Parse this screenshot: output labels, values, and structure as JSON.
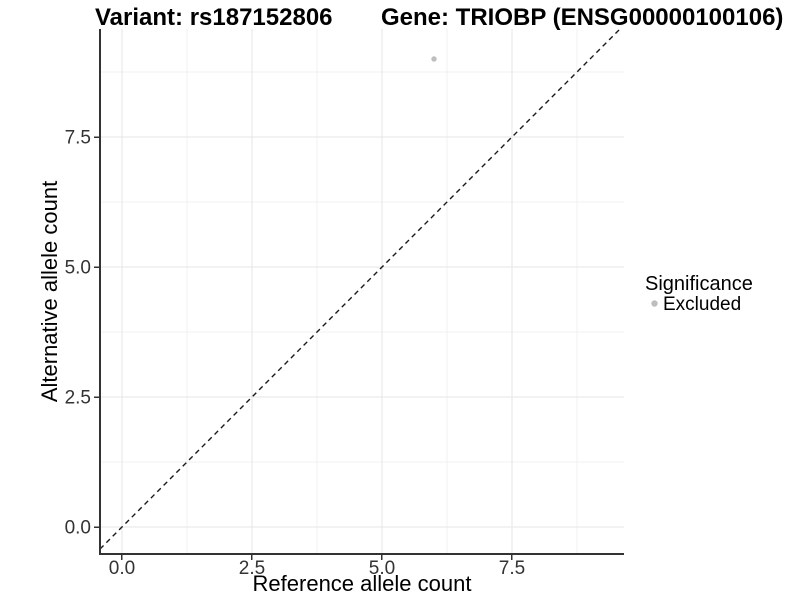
{
  "chart_data": {
    "type": "scatter",
    "titles": {
      "left": "Variant: rs187152806",
      "right": "Gene: TRIOBP (ENSG00000100106)"
    },
    "xlabel": "Reference allele count",
    "ylabel": "Alternative allele count",
    "x_ticks": {
      "values": [
        0,
        2.5,
        5,
        7.5
      ],
      "labels": [
        "0.0",
        "2.5",
        "5.0",
        "7.5"
      ]
    },
    "y_ticks": {
      "values": [
        0,
        2.5,
        5,
        7.5
      ],
      "labels": [
        "0.0",
        "2.5",
        "5.0",
        "7.5"
      ]
    },
    "xlim": [
      -0.423,
      9.654
    ],
    "ylim": [
      -0.519,
      9.577
    ],
    "grid": {
      "major": true,
      "minor": true
    },
    "series": [
      {
        "name": "Excluded",
        "color": "#bebebe",
        "points": [
          {
            "x": 6,
            "y": 9
          }
        ]
      }
    ],
    "reference_line": {
      "type": "identity",
      "slope": 1,
      "intercept": 0,
      "style": "dashed",
      "color": "#1a1a1a"
    },
    "legend": {
      "title": "Significance",
      "position": "right",
      "entries": [
        {
          "label": "Excluded",
          "color": "#bebebe"
        }
      ]
    },
    "colors": {
      "background": "#ffffff",
      "grid_major": "#e6e6e6",
      "grid_minor": "#f0f0f0",
      "axis_line": "#333333",
      "tick_mark": "#333333",
      "tick_label": "#333333"
    }
  }
}
